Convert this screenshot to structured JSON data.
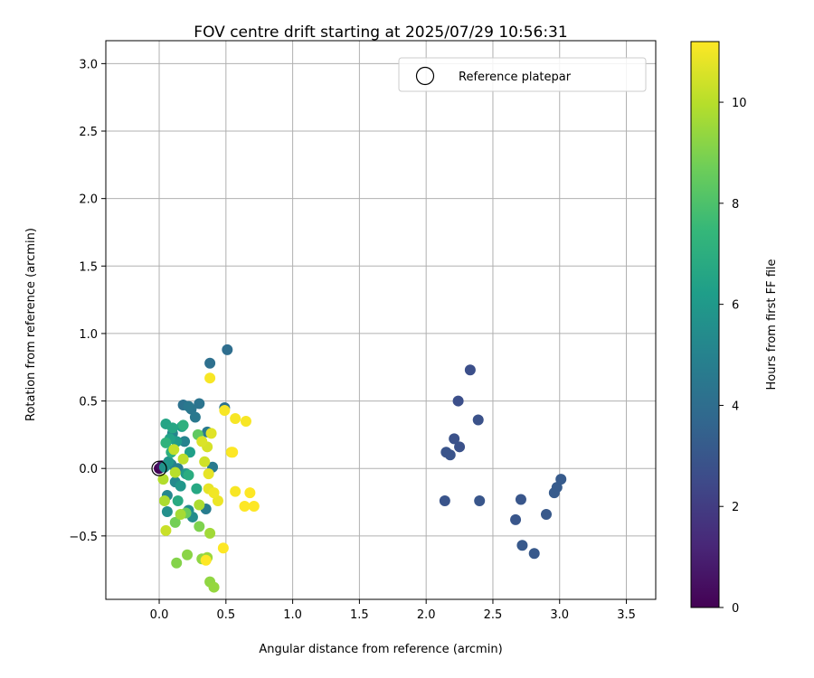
{
  "chart_data": {
    "type": "scatter",
    "title": "FOV centre drift starting at 2025/07/29 10:56:31",
    "xlabel": "Angular distance from reference (arcmin)",
    "ylabel": "Rotation from reference (arcmin)",
    "xlim": [
      -0.4,
      3.72
    ],
    "ylim": [
      -0.97,
      3.17
    ],
    "xticks": [
      0.0,
      0.5,
      1.0,
      1.5,
      2.0,
      2.5,
      3.0,
      3.5
    ],
    "yticks": [
      -0.5,
      0.0,
      0.5,
      1.0,
      1.5,
      2.0,
      2.5,
      3.0
    ],
    "xtick_labels": [
      "0.0",
      "0.5",
      "1.0",
      "1.5",
      "2.0",
      "2.5",
      "3.0",
      "3.5"
    ],
    "ytick_labels": [
      "−0.5",
      "0.0",
      "0.5",
      "1.0",
      "1.5",
      "2.0",
      "2.5",
      "3.0"
    ],
    "grid": true,
    "legend": {
      "position": "top-right",
      "entries": [
        {
          "label": "Reference platepar",
          "marker": "open-circle"
        }
      ]
    },
    "reference_point": {
      "x": 0.0,
      "y": 0.0
    },
    "colorbar": {
      "label": "Hours from first FF file",
      "colormap": "viridis",
      "range": [
        0,
        11.2
      ],
      "ticks": [
        0,
        2,
        4,
        6,
        8,
        10
      ],
      "tick_labels": [
        "0",
        "2",
        "4",
        "6",
        "8",
        "10"
      ]
    },
    "points": [
      {
        "x": 0.0,
        "y": 0.0,
        "c": 0.1
      },
      {
        "x": 0.02,
        "y": 0.02,
        "c": 0.6
      },
      {
        "x": 2.33,
        "y": 0.73,
        "c": 2.7
      },
      {
        "x": 2.24,
        "y": 0.5,
        "c": 2.7
      },
      {
        "x": 2.39,
        "y": 0.36,
        "c": 2.8
      },
      {
        "x": 2.21,
        "y": 0.22,
        "c": 2.8
      },
      {
        "x": 2.25,
        "y": 0.16,
        "c": 2.8
      },
      {
        "x": 2.15,
        "y": 0.12,
        "c": 2.9
      },
      {
        "x": 2.18,
        "y": 0.1,
        "c": 2.9
      },
      {
        "x": 2.14,
        "y": -0.24,
        "c": 2.9
      },
      {
        "x": 2.4,
        "y": -0.24,
        "c": 3.0
      },
      {
        "x": 2.71,
        "y": -0.23,
        "c": 3.0
      },
      {
        "x": 2.67,
        "y": -0.38,
        "c": 3.0
      },
      {
        "x": 2.72,
        "y": -0.57,
        "c": 3.1
      },
      {
        "x": 2.81,
        "y": -0.63,
        "c": 3.1
      },
      {
        "x": 2.9,
        "y": -0.34,
        "c": 3.1
      },
      {
        "x": 2.96,
        "y": -0.18,
        "c": 3.2
      },
      {
        "x": 2.98,
        "y": -0.14,
        "c": 3.2
      },
      {
        "x": 3.01,
        "y": -0.08,
        "c": 3.2
      },
      {
        "x": 0.51,
        "y": 0.88,
        "c": 4.0
      },
      {
        "x": 0.38,
        "y": 0.78,
        "c": 4.1
      },
      {
        "x": 0.49,
        "y": 0.45,
        "c": 4.2
      },
      {
        "x": 0.18,
        "y": 0.47,
        "c": 4.2
      },
      {
        "x": 0.3,
        "y": 0.48,
        "c": 4.3
      },
      {
        "x": 0.24,
        "y": 0.44,
        "c": 4.4
      },
      {
        "x": 0.27,
        "y": 0.38,
        "c": 4.5
      },
      {
        "x": 0.22,
        "y": 0.46,
        "c": 4.5
      },
      {
        "x": 0.36,
        "y": 0.27,
        "c": 4.6
      },
      {
        "x": 0.4,
        "y": 0.01,
        "c": 4.6
      },
      {
        "x": 0.35,
        "y": -0.3,
        "c": 4.7
      },
      {
        "x": 0.14,
        "y": 0.0,
        "c": 4.8
      },
      {
        "x": 0.09,
        "y": 0.03,
        "c": 4.9
      },
      {
        "x": 0.19,
        "y": 0.2,
        "c": 5.0
      },
      {
        "x": 0.1,
        "y": 0.26,
        "c": 5.1
      },
      {
        "x": 0.06,
        "y": -0.2,
        "c": 5.2
      },
      {
        "x": 0.12,
        "y": -0.1,
        "c": 5.3
      },
      {
        "x": 0.25,
        "y": -0.36,
        "c": 5.4
      },
      {
        "x": 0.22,
        "y": -0.31,
        "c": 5.5
      },
      {
        "x": 0.06,
        "y": -0.32,
        "c": 5.6
      },
      {
        "x": 0.04,
        "y": 0.01,
        "c": 5.7
      },
      {
        "x": 0.07,
        "y": 0.05,
        "c": 5.8
      },
      {
        "x": 0.16,
        "y": -0.13,
        "c": 5.9
      },
      {
        "x": 0.2,
        "y": -0.04,
        "c": 6.0
      },
      {
        "x": 0.13,
        "y": 0.2,
        "c": 6.1
      },
      {
        "x": 0.17,
        "y": 0.31,
        "c": 6.2
      },
      {
        "x": 0.23,
        "y": 0.12,
        "c": 6.3
      },
      {
        "x": 0.08,
        "y": 0.22,
        "c": 6.4
      },
      {
        "x": 0.05,
        "y": 0.33,
        "c": 6.5
      },
      {
        "x": 0.1,
        "y": 0.3,
        "c": 6.6
      },
      {
        "x": 0.28,
        "y": -0.15,
        "c": 6.7
      },
      {
        "x": 0.14,
        "y": -0.24,
        "c": 6.8
      },
      {
        "x": 0.22,
        "y": -0.05,
        "c": 6.9
      },
      {
        "x": 0.09,
        "y": 0.12,
        "c": 7.0
      },
      {
        "x": 0.18,
        "y": 0.32,
        "c": 7.1
      },
      {
        "x": 0.05,
        "y": 0.19,
        "c": 7.2
      },
      {
        "x": 0.29,
        "y": 0.25,
        "c": 8.4
      },
      {
        "x": 0.2,
        "y": -0.33,
        "c": 8.6
      },
      {
        "x": 0.12,
        "y": -0.4,
        "c": 8.8
      },
      {
        "x": 0.3,
        "y": -0.43,
        "c": 9.0
      },
      {
        "x": 0.13,
        "y": -0.7,
        "c": 9.1
      },
      {
        "x": 0.21,
        "y": -0.64,
        "c": 9.2
      },
      {
        "x": 0.32,
        "y": -0.67,
        "c": 9.3
      },
      {
        "x": 0.38,
        "y": -0.84,
        "c": 9.3
      },
      {
        "x": 0.41,
        "y": -0.88,
        "c": 9.4
      },
      {
        "x": 0.36,
        "y": -0.66,
        "c": 9.5
      },
      {
        "x": 0.38,
        "y": -0.48,
        "c": 9.6
      },
      {
        "x": 0.16,
        "y": -0.34,
        "c": 9.7
      },
      {
        "x": 0.3,
        "y": -0.27,
        "c": 9.8
      },
      {
        "x": 0.04,
        "y": -0.24,
        "c": 9.8
      },
      {
        "x": 0.03,
        "y": -0.08,
        "c": 9.9
      },
      {
        "x": 0.12,
        "y": -0.03,
        "c": 10.0
      },
      {
        "x": 0.18,
        "y": 0.07,
        "c": 10.1
      },
      {
        "x": 0.11,
        "y": 0.14,
        "c": 10.2
      },
      {
        "x": 0.05,
        "y": -0.46,
        "c": 10.3
      },
      {
        "x": 0.34,
        "y": 0.05,
        "c": 10.4
      },
      {
        "x": 0.36,
        "y": 0.16,
        "c": 10.5
      },
      {
        "x": 0.32,
        "y": 0.2,
        "c": 10.6
      },
      {
        "x": 0.39,
        "y": 0.26,
        "c": 10.7
      },
      {
        "x": 0.37,
        "y": -0.04,
        "c": 10.8
      },
      {
        "x": 0.37,
        "y": -0.15,
        "c": 10.8
      },
      {
        "x": 0.44,
        "y": -0.24,
        "c": 10.9
      },
      {
        "x": 0.41,
        "y": -0.18,
        "c": 11.0
      },
      {
        "x": 0.54,
        "y": 0.12,
        "c": 11.0
      },
      {
        "x": 0.38,
        "y": 0.67,
        "c": 11.1
      },
      {
        "x": 0.49,
        "y": 0.43,
        "c": 11.1
      },
      {
        "x": 0.57,
        "y": 0.37,
        "c": 11.1
      },
      {
        "x": 0.65,
        "y": 0.35,
        "c": 11.1
      },
      {
        "x": 0.57,
        "y": -0.17,
        "c": 11.1
      },
      {
        "x": 0.64,
        "y": -0.28,
        "c": 11.2
      },
      {
        "x": 0.68,
        "y": -0.18,
        "c": 11.2
      },
      {
        "x": 0.71,
        "y": -0.28,
        "c": 11.2
      },
      {
        "x": 0.48,
        "y": -0.59,
        "c": 11.2
      },
      {
        "x": 0.35,
        "y": -0.68,
        "c": 11.2
      },
      {
        "x": 0.55,
        "y": 0.12,
        "c": 11.2
      }
    ]
  }
}
